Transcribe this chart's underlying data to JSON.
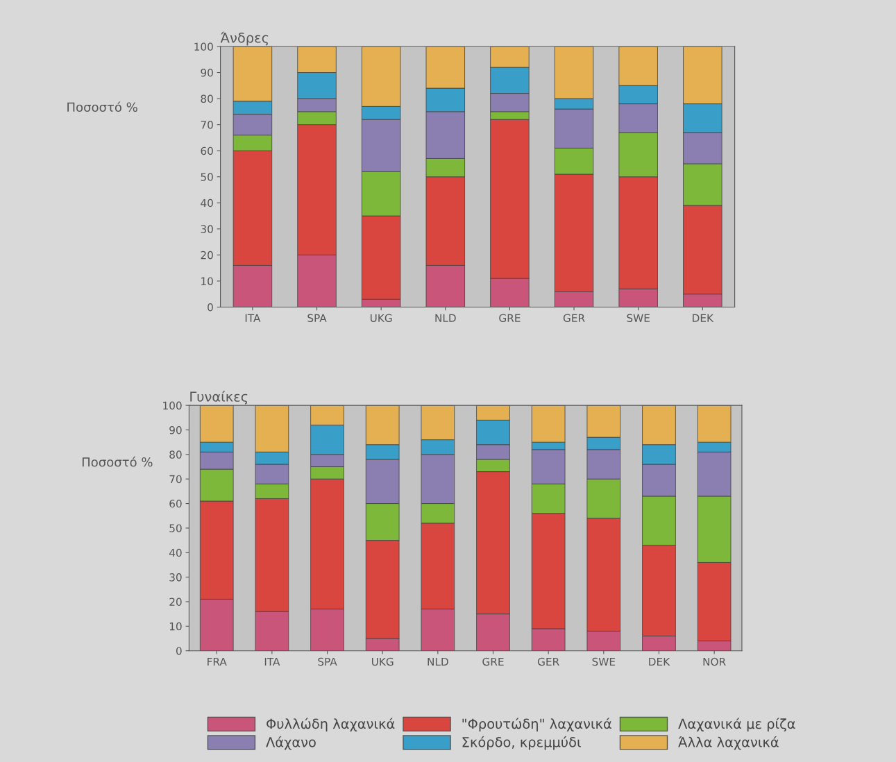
{
  "chart_data": [
    {
      "type": "bar",
      "stacked": true,
      "title": "Άνδρες",
      "ylabel": "Ποσοστό %",
      "categories": [
        "ITA",
        "SPA",
        "UKG",
        "NLD",
        "GRE",
        "GER",
        "SWE",
        "DEK"
      ],
      "ylim": [
        0,
        100
      ],
      "yticks": [
        0,
        10,
        20,
        30,
        40,
        50,
        60,
        70,
        80,
        90,
        100
      ],
      "grid": false,
      "legend": "bottom",
      "series": [
        {
          "name": "Φυλλώδη λαχανικά",
          "color": "#c9557a",
          "values": [
            16,
            20,
            3,
            16,
            11,
            6,
            7,
            5
          ]
        },
        {
          "name": "\"Φρουτώδη\" λαχανικά",
          "color": "#d9463f",
          "values": [
            44,
            50,
            32,
            34,
            61,
            45,
            43,
            34
          ]
        },
        {
          "name": "Λαχανικά με ρίζα",
          "color": "#7db83a",
          "values": [
            6,
            5,
            17,
            7,
            3,
            10,
            17,
            16
          ]
        },
        {
          "name": "Λάχανο",
          "color": "#8a7fb0",
          "values": [
            8,
            5,
            20,
            18,
            7,
            15,
            11,
            12
          ]
        },
        {
          "name": "Σκόρδο, κρεμμύδι",
          "color": "#3a9fc8",
          "values": [
            5,
            10,
            5,
            9,
            10,
            4,
            7,
            11
          ]
        },
        {
          "name": "Άλλα λαχανικά",
          "color": "#e4b052",
          "values": [
            21,
            10,
            23,
            16,
            8,
            20,
            15,
            22
          ]
        }
      ]
    },
    {
      "type": "bar",
      "stacked": true,
      "title": "Γυναίκες",
      "ylabel": "Ποσοστό %",
      "categories": [
        "FRA",
        "ITA",
        "SPA",
        "UKG",
        "NLD",
        "GRE",
        "GER",
        "SWE",
        "DEK",
        "NOR"
      ],
      "ylim": [
        0,
        100
      ],
      "yticks": [
        0,
        10,
        20,
        30,
        40,
        50,
        60,
        70,
        80,
        90,
        100
      ],
      "grid": false,
      "series": [
        {
          "color": "#c9557a",
          "values": [
            21,
            16,
            17,
            5,
            17,
            15,
            9,
            8,
            6,
            4
          ]
        },
        {
          "color": "#d9463f",
          "values": [
            40,
            46,
            53,
            40,
            35,
            58,
            47,
            46,
            37,
            32
          ]
        },
        {
          "color": "#7db83a",
          "values": [
            13,
            6,
            5,
            15,
            8,
            5,
            12,
            16,
            20,
            27
          ]
        },
        {
          "color": "#8a7fb0",
          "values": [
            7,
            8,
            5,
            18,
            20,
            6,
            14,
            12,
            13,
            18
          ]
        },
        {
          "color": "#3a9fc8",
          "values": [
            4,
            5,
            12,
            6,
            6,
            10,
            3,
            5,
            8,
            4
          ]
        },
        {
          "color": "#e4b052",
          "values": [
            15,
            19,
            8,
            16,
            14,
            6,
            15,
            13,
            16,
            15
          ]
        }
      ]
    }
  ]
}
